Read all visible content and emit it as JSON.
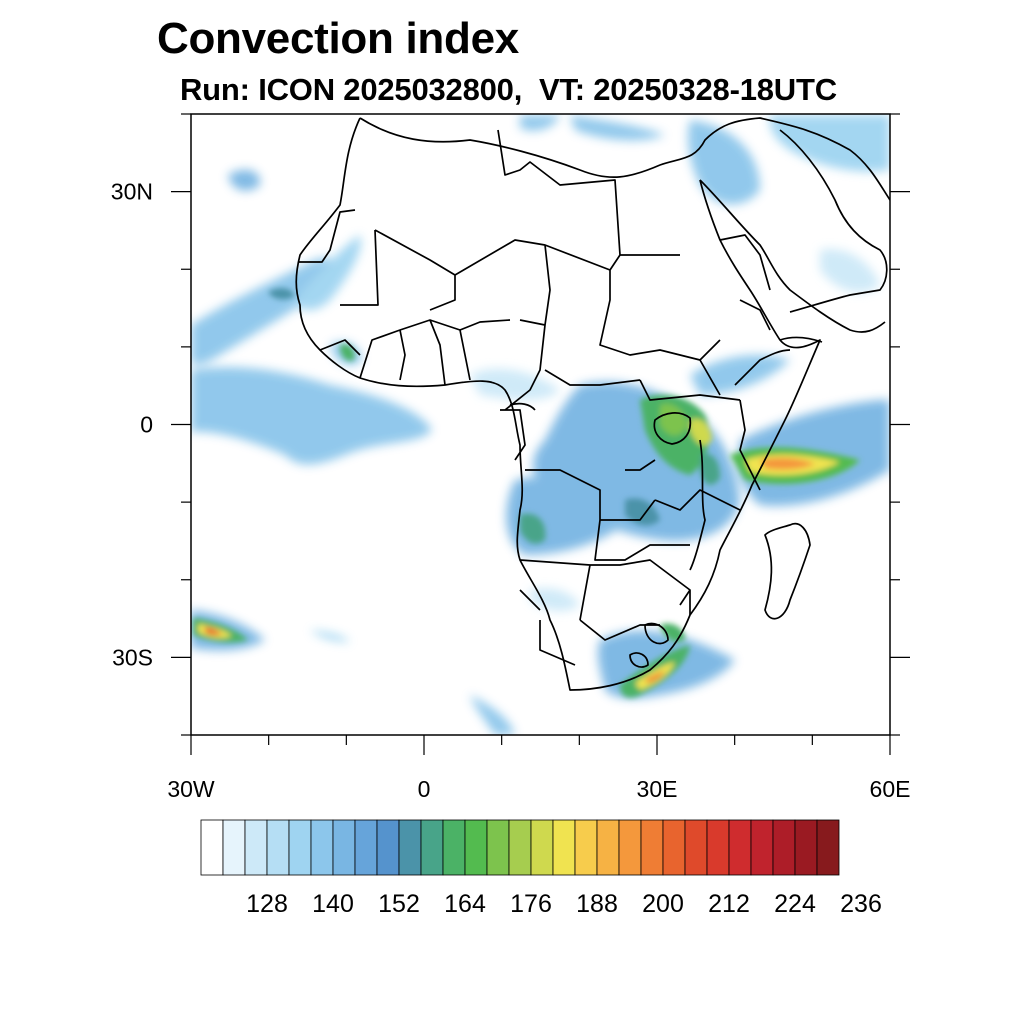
{
  "title": "Convection index",
  "subtitle": "Run: ICON 2025032800,  VT: 20250328-18UTC",
  "map": {
    "extent": {
      "lon": [
        -30,
        60
      ],
      "lat": [
        -40,
        40
      ]
    },
    "x_ticks": [
      {
        "lon": -30,
        "label": "30W"
      },
      {
        "lon": 0,
        "label": "0"
      },
      {
        "lon": 30,
        "label": "30E"
      },
      {
        "lon": 60,
        "label": "60E"
      }
    ],
    "y_ticks": [
      {
        "lat": 30,
        "label": "30N"
      },
      {
        "lat": 0,
        "label": "0"
      },
      {
        "lat": -30,
        "label": "30S"
      }
    ]
  },
  "colorbar": {
    "colors": [
      "#ffffff",
      "#e6f4fc",
      "#cde9f8",
      "#b5def4",
      "#9fd4f1",
      "#8cc6eb",
      "#79b6e3",
      "#66a4da",
      "#5593cd",
      "#4b93a9",
      "#48a489",
      "#4bb266",
      "#53bb4f",
      "#7dc34d",
      "#a6cd4f",
      "#cfd94e",
      "#f0e350",
      "#f7cc4c",
      "#f6b244",
      "#f4983c",
      "#ef7d34",
      "#e8642e",
      "#df4a2b",
      "#d93a2c",
      "#cf2c2e",
      "#c0232d",
      "#ad1d28",
      "#9a1a22",
      "#871a1d"
    ],
    "labels": [
      "128",
      "140",
      "152",
      "164",
      "176",
      "188",
      "200",
      "212",
      "224",
      "236"
    ]
  }
}
